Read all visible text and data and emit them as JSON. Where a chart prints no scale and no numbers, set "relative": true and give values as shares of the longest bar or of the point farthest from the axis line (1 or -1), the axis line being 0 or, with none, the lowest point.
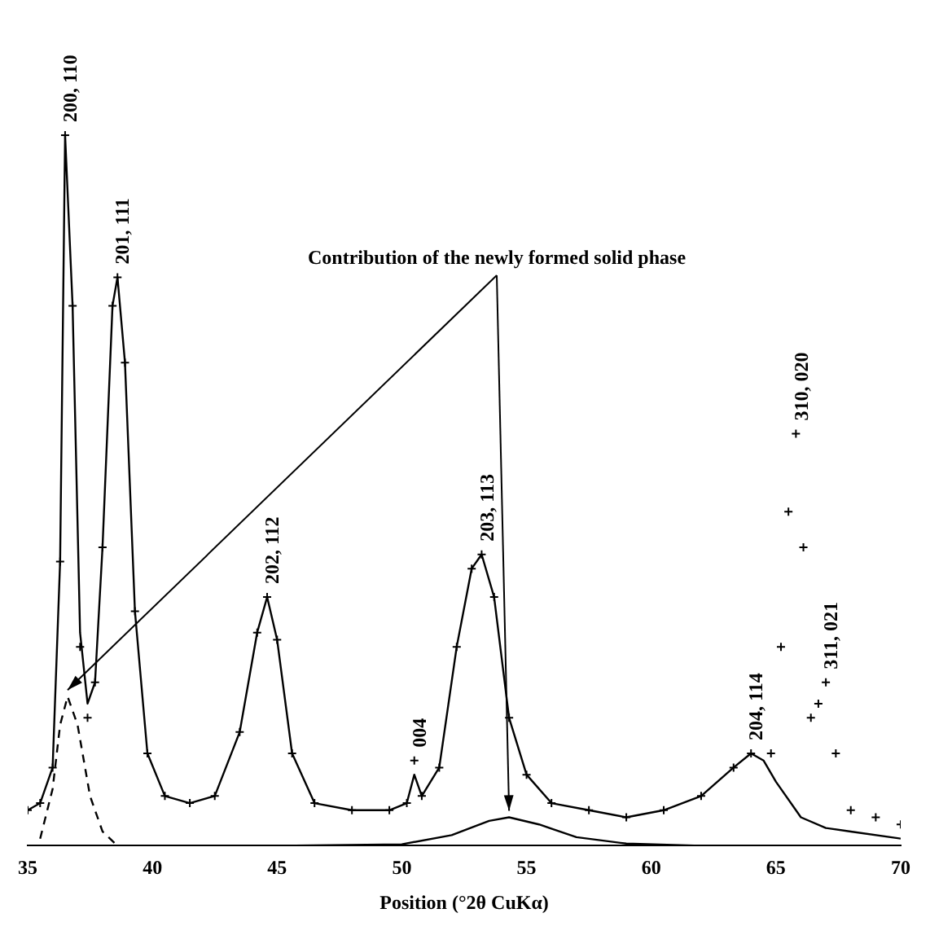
{
  "chart_data": {
    "type": "line",
    "relative": true,
    "xlabel": "Position (°2θ CuKα)",
    "xlim": [
      35,
      70
    ],
    "xticks": [
      35,
      40,
      45,
      50,
      55,
      60,
      65,
      70
    ],
    "grid": false,
    "legend": false,
    "tick_labels": "x",
    "series": [
      {
        "type": "scatter",
        "marker": "cross",
        "color": "#000000",
        "x": [
          35,
          35.5,
          36,
          36.3,
          36.5,
          36.8,
          37.1,
          37.4,
          37.7,
          38,
          38.4,
          38.6,
          38.9,
          39.3,
          39.8,
          40.5,
          41.5,
          42.5,
          43.5,
          44.2,
          44.6,
          45,
          45.6,
          46.5,
          48,
          49.5,
          50.2,
          50.5,
          50.8,
          51.5,
          52.2,
          52.8,
          53.2,
          53.7,
          54.3,
          55,
          56,
          57.5,
          59,
          60.5,
          62,
          63.3,
          64,
          64.8,
          65.2,
          65.5,
          65.8,
          66.1,
          66.4,
          66.7,
          67,
          67.4,
          68,
          69,
          70
        ],
        "values": [
          0.05,
          0.06,
          0.11,
          0.4,
          1.0,
          0.76,
          0.28,
          0.18,
          0.23,
          0.42,
          0.76,
          0.8,
          0.68,
          0.33,
          0.13,
          0.07,
          0.06,
          0.07,
          0.16,
          0.3,
          0.35,
          0.29,
          0.13,
          0.06,
          0.05,
          0.05,
          0.06,
          0.12,
          0.07,
          0.11,
          0.28,
          0.39,
          0.41,
          0.35,
          0.18,
          0.1,
          0.06,
          0.05,
          0.04,
          0.05,
          0.07,
          0.11,
          0.13,
          0.13,
          0.28,
          0.47,
          0.58,
          0.42,
          0.18,
          0.2,
          0.23,
          0.13,
          0.05,
          0.04,
          0.03
        ]
      },
      {
        "marker": "none",
        "line_style": "solid",
        "color": "#000000",
        "x": [
          35,
          35.5,
          36,
          36.3,
          36.5,
          36.8,
          37.1,
          37.4,
          37.7,
          38,
          38.4,
          38.6,
          38.9,
          39.3,
          39.8,
          40.5,
          41.5,
          42.5,
          43.5,
          44.2,
          44.6,
          45,
          45.6,
          46.5,
          48,
          49.5,
          50.2,
          50.5,
          50.8,
          51.5,
          52.2,
          52.8,
          53.2,
          53.7,
          54.3,
          55,
          56,
          57.5,
          59,
          60.5,
          62,
          63.3,
          64,
          64.5,
          65,
          66,
          67,
          68,
          70
        ],
        "values": [
          0.05,
          0.06,
          0.11,
          0.4,
          1.0,
          0.76,
          0.3,
          0.2,
          0.23,
          0.42,
          0.76,
          0.8,
          0.68,
          0.33,
          0.13,
          0.07,
          0.06,
          0.07,
          0.16,
          0.3,
          0.35,
          0.29,
          0.13,
          0.06,
          0.05,
          0.05,
          0.06,
          0.1,
          0.07,
          0.11,
          0.28,
          0.39,
          0.41,
          0.35,
          0.18,
          0.1,
          0.06,
          0.05,
          0.04,
          0.05,
          0.07,
          0.11,
          0.13,
          0.12,
          0.09,
          0.04,
          0.025,
          0.02,
          0.01
        ]
      },
      {
        "marker": "none",
        "line_style": "dashed",
        "color": "#000000",
        "x": [
          35.5,
          36,
          36.3,
          36.6,
          37,
          37.5,
          38,
          38.6
        ],
        "values": [
          0.01,
          0.08,
          0.17,
          0.21,
          0.17,
          0.07,
          0.02,
          0
        ]
      },
      {
        "marker": "none",
        "line_style": "solid",
        "color": "#000000",
        "x": [
          38.6,
          45,
          50,
          52,
          53.5,
          54.3,
          55.5,
          57,
          59,
          62,
          66,
          70
        ],
        "values": [
          0,
          0,
          0.002,
          0.015,
          0.035,
          0.04,
          0.03,
          0.012,
          0.003,
          0,
          0,
          0
        ]
      }
    ],
    "annotations": [
      {
        "text": "200, 110",
        "x": 36.5,
        "y": 1.0
      },
      {
        "text": "201, 111",
        "x": 38.6,
        "y": 0.8
      },
      {
        "text": "202, 112",
        "x": 44.6,
        "y": 0.35
      },
      {
        "text": "004",
        "x": 50.5,
        "y": 0.12
      },
      {
        "text": "203, 113",
        "x": 53.2,
        "y": 0.41
      },
      {
        "text": "204, 114",
        "x": 64,
        "y": 0.13
      },
      {
        "text": "310, 020",
        "x": 65.8,
        "y": 0.58
      },
      {
        "text": "311, 021",
        "x": 67,
        "y": 0.23
      },
      "Contribution of the newly formed solid phase"
    ]
  }
}
